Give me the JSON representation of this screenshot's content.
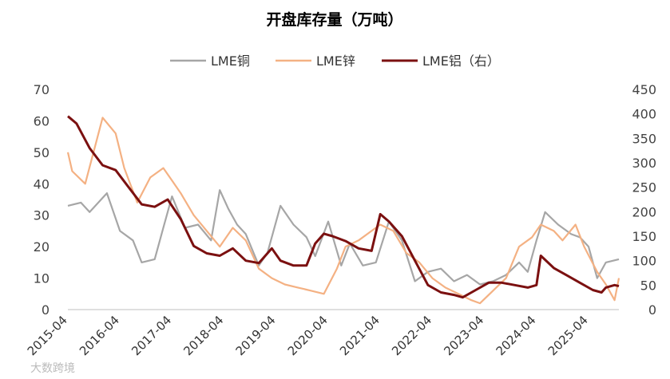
{
  "chart_data": {
    "type": "line",
    "title": "开盘库存量（万吨）",
    "x_tick_labels": [
      "2015-04",
      "2016-04",
      "2017-04",
      "2018-04",
      "2019-04",
      "2020-04",
      "2021-04",
      "2022-04",
      "2023-04",
      "2024-04",
      "2025-04"
    ],
    "x_range": [
      "2015-04",
      "2025-11"
    ],
    "y_left": {
      "ticks": [
        "0",
        "10",
        "20",
        "30",
        "40",
        "50",
        "60",
        "70"
      ],
      "range": [
        0,
        70
      ]
    },
    "y_right": {
      "ticks": [
        "0",
        "50",
        "100",
        "150",
        "200",
        "250",
        "300",
        "350",
        "400",
        "450"
      ],
      "range": [
        0,
        450
      ]
    },
    "grid": false,
    "legend_position": "top",
    "series": [
      {
        "name": "LME铜",
        "axis": "left",
        "color": "#a6a6a6",
        "points": [
          [
            "2015-04",
            33
          ],
          [
            "2015-07",
            34
          ],
          [
            "2015-09",
            31
          ],
          [
            "2016-01",
            37
          ],
          [
            "2016-04",
            25
          ],
          [
            "2016-07",
            22
          ],
          [
            "2016-09",
            15
          ],
          [
            "2016-12",
            16
          ],
          [
            "2017-02",
            26
          ],
          [
            "2017-04",
            36
          ],
          [
            "2017-07",
            26
          ],
          [
            "2017-10",
            27
          ],
          [
            "2018-01",
            22
          ],
          [
            "2018-03",
            38
          ],
          [
            "2018-05",
            32
          ],
          [
            "2018-07",
            27
          ],
          [
            "2018-09",
            24
          ],
          [
            "2018-12",
            14
          ],
          [
            "2019-02",
            18
          ],
          [
            "2019-05",
            33
          ],
          [
            "2019-08",
            27
          ],
          [
            "2019-11",
            23
          ],
          [
            "2020-01",
            17
          ],
          [
            "2020-04",
            28
          ],
          [
            "2020-07",
            14
          ],
          [
            "2020-09",
            21
          ],
          [
            "2020-12",
            14
          ],
          [
            "2021-03",
            15
          ],
          [
            "2021-06",
            28
          ],
          [
            "2021-09",
            22
          ],
          [
            "2021-12",
            9
          ],
          [
            "2022-03",
            12
          ],
          [
            "2022-06",
            13
          ],
          [
            "2022-09",
            9
          ],
          [
            "2022-12",
            11
          ],
          [
            "2023-03",
            8
          ],
          [
            "2023-06",
            9
          ],
          [
            "2023-09",
            11
          ],
          [
            "2023-12",
            15
          ],
          [
            "2024-02",
            12
          ],
          [
            "2024-04",
            22
          ],
          [
            "2024-06",
            31
          ],
          [
            "2024-09",
            27
          ],
          [
            "2024-12",
            24
          ],
          [
            "2025-02",
            23
          ],
          [
            "2025-04",
            20
          ],
          [
            "2025-06",
            10
          ],
          [
            "2025-08",
            15
          ],
          [
            "2025-11",
            16
          ]
        ]
      },
      {
        "name": "LME锌",
        "axis": "left",
        "color": "#f4b183",
        "points": [
          [
            "2015-04",
            50
          ],
          [
            "2015-05",
            44
          ],
          [
            "2015-08",
            40
          ],
          [
            "2015-12",
            61
          ],
          [
            "2016-03",
            56
          ],
          [
            "2016-05",
            45
          ],
          [
            "2016-08",
            34
          ],
          [
            "2016-11",
            42
          ],
          [
            "2017-02",
            45
          ],
          [
            "2017-04",
            41
          ],
          [
            "2017-06",
            37
          ],
          [
            "2017-09",
            30
          ],
          [
            "2017-12",
            25
          ],
          [
            "2018-03",
            20
          ],
          [
            "2018-06",
            26
          ],
          [
            "2018-09",
            22
          ],
          [
            "2018-12",
            13
          ],
          [
            "2019-03",
            10
          ],
          [
            "2019-06",
            8
          ],
          [
            "2019-09",
            7
          ],
          [
            "2019-12",
            6
          ],
          [
            "2020-03",
            5
          ],
          [
            "2020-06",
            13
          ],
          [
            "2020-08",
            20
          ],
          [
            "2020-11",
            22
          ],
          [
            "2021-02",
            25
          ],
          [
            "2021-04",
            27
          ],
          [
            "2021-07",
            25
          ],
          [
            "2021-10",
            18
          ],
          [
            "2022-01",
            15
          ],
          [
            "2022-04",
            10
          ],
          [
            "2022-07",
            7
          ],
          [
            "2022-10",
            5
          ],
          [
            "2023-01",
            3
          ],
          [
            "2023-03",
            2
          ],
          [
            "2023-06",
            6
          ],
          [
            "2023-09",
            10
          ],
          [
            "2023-12",
            20
          ],
          [
            "2024-03",
            23
          ],
          [
            "2024-05",
            27
          ],
          [
            "2024-08",
            25
          ],
          [
            "2024-10",
            22
          ],
          [
            "2025-01",
            27
          ],
          [
            "2025-03",
            20
          ],
          [
            "2025-06",
            12
          ],
          [
            "2025-08",
            8
          ],
          [
            "2025-10",
            3
          ],
          [
            "2025-11",
            10
          ]
        ]
      },
      {
        "name": "LME铝（右）",
        "axis": "right",
        "color": "#7b1010",
        "points": [
          [
            "2015-04",
            395
          ],
          [
            "2015-06",
            380
          ],
          [
            "2015-09",
            330
          ],
          [
            "2015-12",
            295
          ],
          [
            "2016-03",
            285
          ],
          [
            "2016-06",
            250
          ],
          [
            "2016-09",
            215
          ],
          [
            "2016-12",
            210
          ],
          [
            "2017-03",
            225
          ],
          [
            "2017-06",
            185
          ],
          [
            "2017-09",
            130
          ],
          [
            "2017-12",
            115
          ],
          [
            "2018-03",
            110
          ],
          [
            "2018-06",
            125
          ],
          [
            "2018-09",
            100
          ],
          [
            "2018-12",
            95
          ],
          [
            "2019-03",
            125
          ],
          [
            "2019-05",
            100
          ],
          [
            "2019-08",
            90
          ],
          [
            "2019-11",
            90
          ],
          [
            "2020-01",
            135
          ],
          [
            "2020-03",
            155
          ],
          [
            "2020-05",
            150
          ],
          [
            "2020-08",
            140
          ],
          [
            "2020-11",
            125
          ],
          [
            "2021-02",
            120
          ],
          [
            "2021-04",
            195
          ],
          [
            "2021-06",
            180
          ],
          [
            "2021-09",
            150
          ],
          [
            "2021-12",
            100
          ],
          [
            "2022-03",
            50
          ],
          [
            "2022-06",
            35
          ],
          [
            "2022-09",
            30
          ],
          [
            "2022-11",
            25
          ],
          [
            "2023-02",
            40
          ],
          [
            "2023-05",
            55
          ],
          [
            "2023-08",
            55
          ],
          [
            "2023-11",
            50
          ],
          [
            "2024-02",
            45
          ],
          [
            "2024-04",
            50
          ],
          [
            "2024-05",
            110
          ],
          [
            "2024-08",
            85
          ],
          [
            "2024-11",
            70
          ],
          [
            "2025-02",
            55
          ],
          [
            "2025-05",
            40
          ],
          [
            "2025-07",
            35
          ],
          [
            "2025-08",
            45
          ],
          [
            "2025-10",
            50
          ],
          [
            "2025-11",
            48
          ]
        ]
      }
    ]
  },
  "watermark": "大数跨境"
}
